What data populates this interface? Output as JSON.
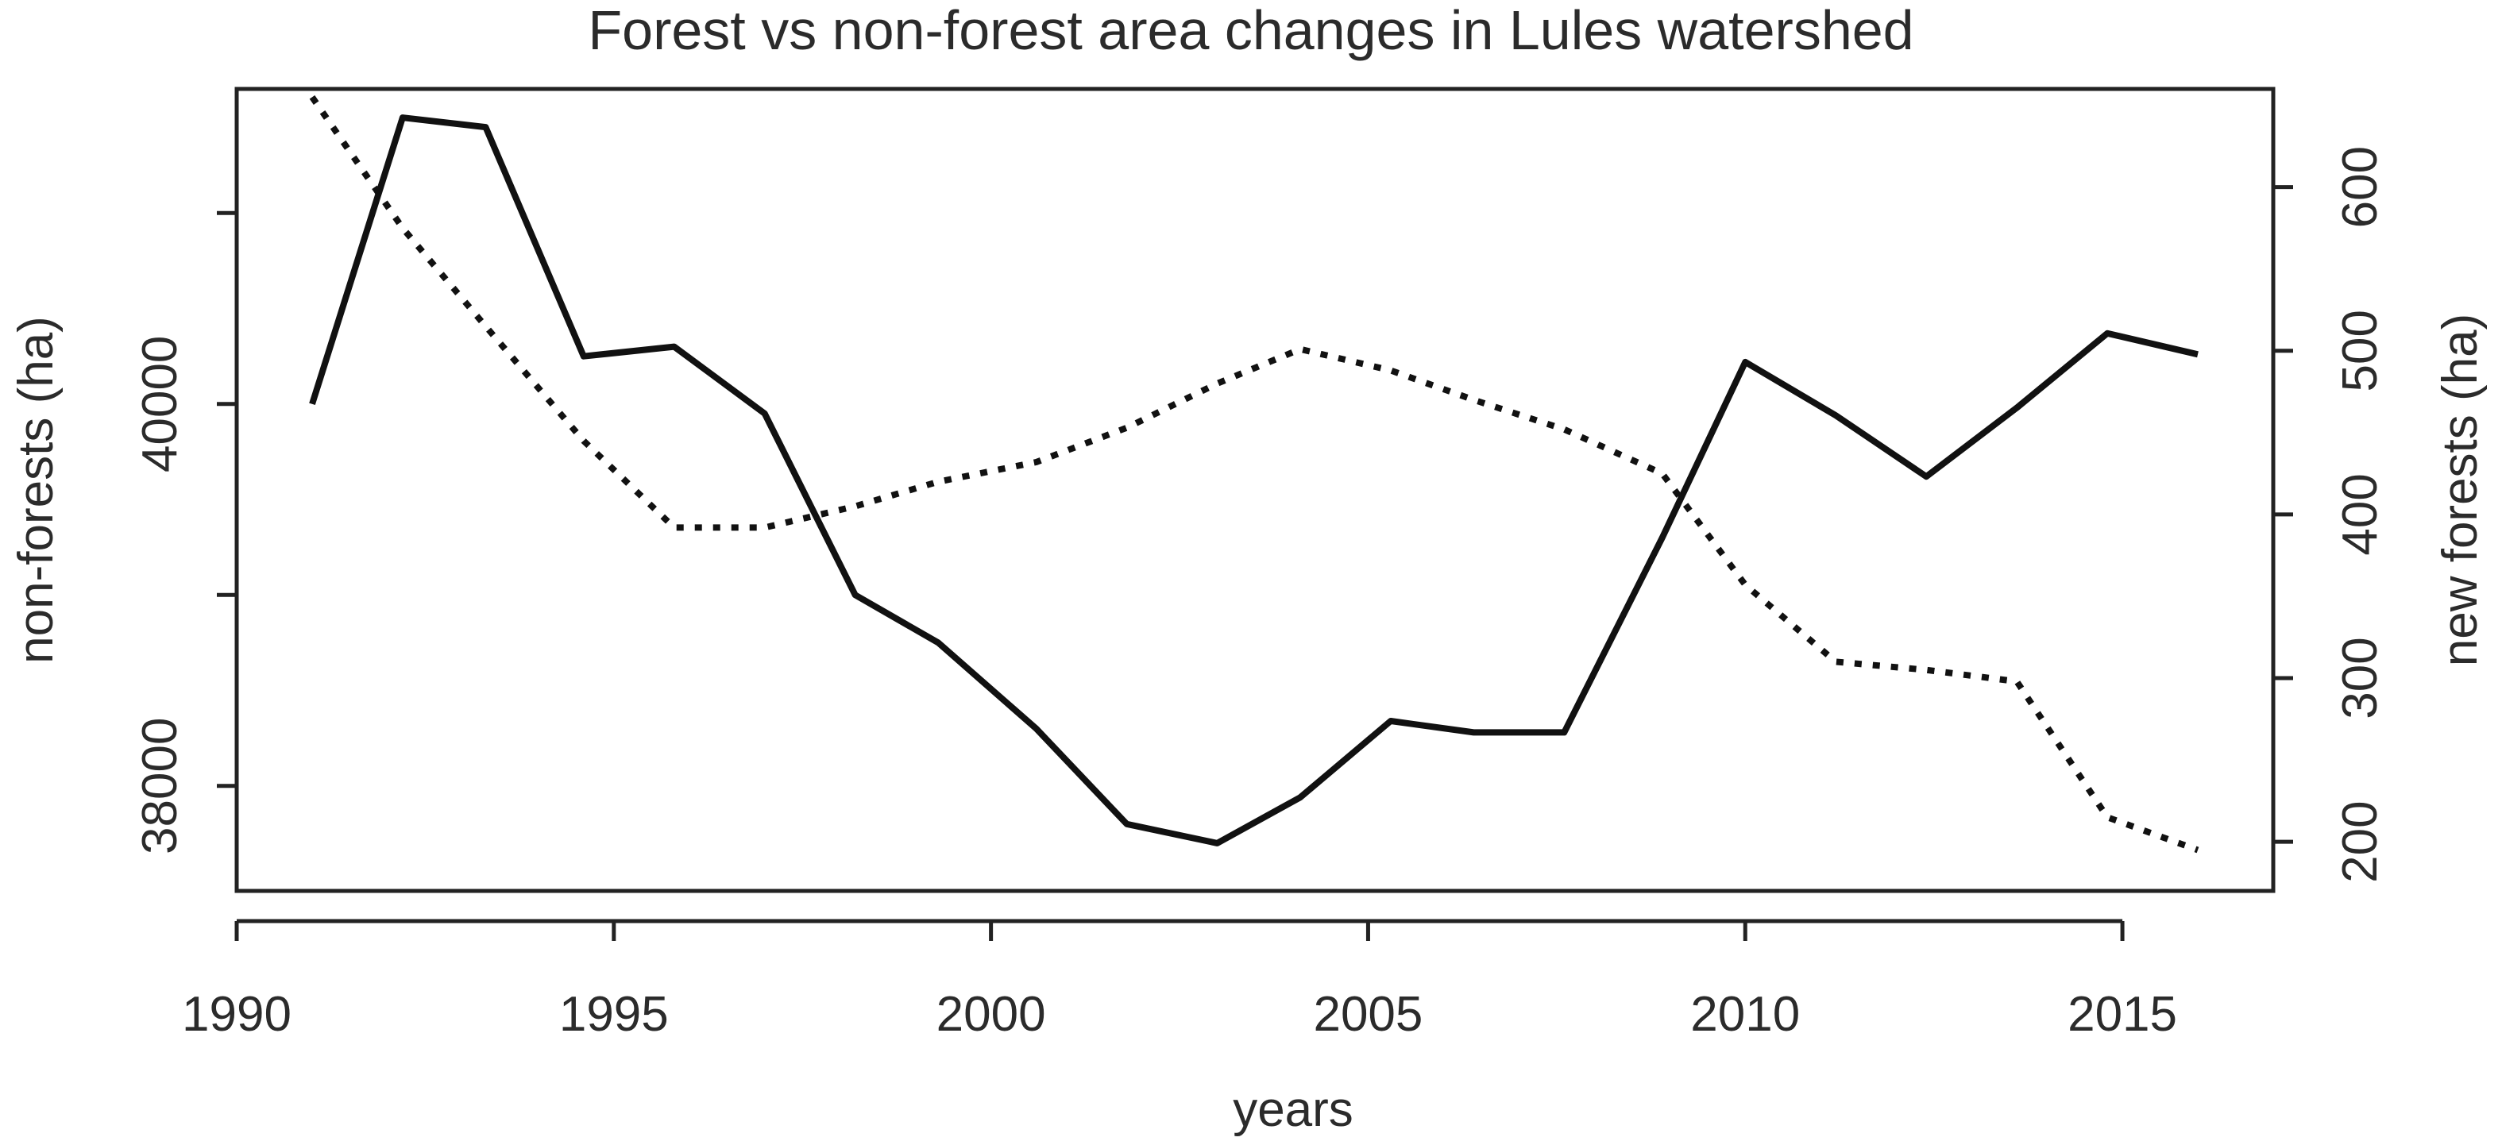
{
  "chart_data": {
    "type": "line",
    "title": "Forest vs non-forest area changes in Lules watershed",
    "xlabel": "years",
    "ylabel_left": "non-forests (ha)",
    "ylabel_right": "new forests (ha)",
    "xlim": [
      1990,
      2017
    ],
    "ylim_left": [
      37450,
      41650
    ],
    "ylim_right": [
      170,
      660
    ],
    "x_ticks": [
      "1990",
      "1995",
      "2000",
      "2005",
      "2010",
      "2015"
    ],
    "y_left_ticks": [
      "38000",
      "40000"
    ],
    "y_right_ticks": [
      "200",
      "300",
      "400",
      "500",
      "600"
    ],
    "grid": false,
    "legend": "none",
    "colors": {
      "solid_series": "#111111",
      "dotted_series": "#111111",
      "axes": "#222222",
      "text": "#2b2b2b"
    },
    "series": [
      {
        "axis": "left",
        "style": "solid",
        "x": [
          1991,
          1992.2,
          1993.3,
          1994.6,
          1995.8,
          1997,
          1998.2,
          1999.3,
          2000.6,
          2001.8,
          2003,
          2004.1,
          2005.3,
          2006.4,
          2007.6,
          2008.9,
          2010,
          2011.2,
          2012.4,
          2013.6,
          2014.8,
          2016
        ],
        "values": [
          40000,
          41500,
          41450,
          40250,
          40300,
          39950,
          39000,
          38750,
          38300,
          37800,
          37700,
          37940,
          38340,
          38280,
          38280,
          39300,
          40220,
          39940,
          39620,
          39980,
          40370,
          40260
        ]
      },
      {
        "axis": "right",
        "style": "dotted",
        "x": [
          1991,
          1992.2,
          1993.3,
          1994.6,
          1995.8,
          1997,
          1998.2,
          1999.3,
          2000.6,
          2001.8,
          2003,
          2004.1,
          2005.3,
          2006.4,
          2007.6,
          2008.9,
          2010,
          2011.2,
          2012.4,
          2013.6,
          2014.8,
          2016
        ],
        "values": [
          655,
          575,
          515,
          445,
          392,
          392,
          405,
          420,
          432,
          453,
          480,
          501,
          488,
          470,
          452,
          425,
          357,
          310,
          305,
          298,
          215,
          195
        ]
      }
    ]
  }
}
